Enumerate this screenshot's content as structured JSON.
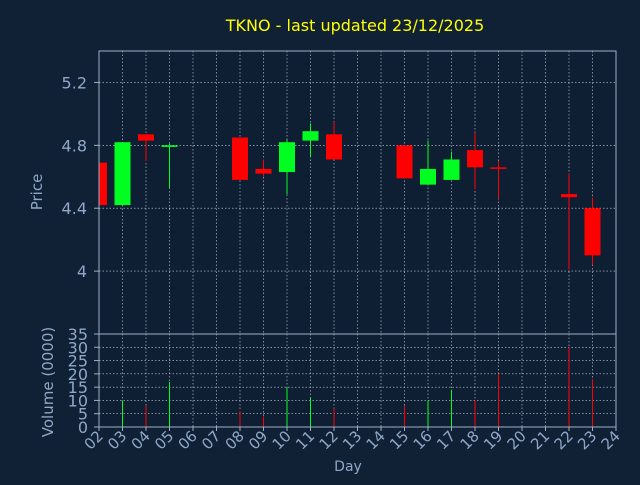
{
  "colors": {
    "background": "#102035",
    "plot_background": "#0f1f33",
    "frame": "#9ab0c8",
    "grid": "#c8d2dc",
    "title": "#ffff00",
    "axis_text": "#8fa8c8",
    "up": "#00ff20",
    "down": "#ff0000"
  },
  "chart_data": {
    "type": "candlestick",
    "title": "TKNO - last updated 23/12/2025",
    "xlabel": "Day",
    "price_panel": {
      "ylabel": "Price",
      "ylim": [
        3.6,
        5.4
      ],
      "yticks": [
        "4",
        "4.4",
        "4.8",
        "5.2"
      ],
      "ytick_values": [
        4.0,
        4.4,
        4.8,
        5.2
      ],
      "grid": true
    },
    "volume_panel": {
      "ylabel": "Volume (0000)",
      "ylim": [
        0,
        35
      ],
      "yticks": [
        "0",
        "5",
        "10",
        "15",
        "20",
        "25",
        "30",
        "35"
      ],
      "ytick_values": [
        0,
        5,
        10,
        15,
        20,
        25,
        30,
        35
      ],
      "grid": true
    },
    "xlim": [
      2,
      24
    ],
    "xticks": [
      "02",
      "03",
      "04",
      "05",
      "06",
      "07",
      "08",
      "09",
      "10",
      "11",
      "12",
      "13",
      "14",
      "15",
      "16",
      "17",
      "18",
      "19",
      "20",
      "21",
      "22",
      "23",
      "24"
    ],
    "candles": [
      {
        "day": 2,
        "open": 4.69,
        "high": 4.69,
        "low": 4.42,
        "close": 4.42,
        "volume": 0
      },
      {
        "day": 3,
        "open": 4.42,
        "high": 4.82,
        "low": 4.42,
        "close": 4.82,
        "volume": 10
      },
      {
        "day": 4,
        "open": 4.87,
        "high": 4.87,
        "low": 4.7,
        "close": 4.83,
        "volume": 8
      },
      {
        "day": 5,
        "open": 4.79,
        "high": 4.81,
        "low": 4.53,
        "close": 4.8,
        "volume": 17
      },
      {
        "day": 8,
        "open": 4.85,
        "high": 4.85,
        "low": 4.58,
        "close": 4.58,
        "volume": 6
      },
      {
        "day": 9,
        "open": 4.65,
        "high": 4.71,
        "low": 4.6,
        "close": 4.62,
        "volume": 4
      },
      {
        "day": 10,
        "open": 4.63,
        "high": 4.84,
        "low": 4.49,
        "close": 4.82,
        "volume": 15
      },
      {
        "day": 11,
        "open": 4.83,
        "high": 4.94,
        "low": 4.73,
        "close": 4.89,
        "volume": 11
      },
      {
        "day": 12,
        "open": 4.87,
        "high": 4.95,
        "low": 4.71,
        "close": 4.71,
        "volume": 7
      },
      {
        "day": 15,
        "open": 4.8,
        "high": 4.8,
        "low": 4.59,
        "close": 4.59,
        "volume": 8
      },
      {
        "day": 16,
        "open": 4.55,
        "high": 4.83,
        "low": 4.55,
        "close": 4.65,
        "volume": 10
      },
      {
        "day": 17,
        "open": 4.58,
        "high": 4.76,
        "low": 4.58,
        "close": 4.71,
        "volume": 14
      },
      {
        "day": 18,
        "open": 4.77,
        "high": 4.88,
        "low": 4.52,
        "close": 4.66,
        "volume": 10
      },
      {
        "day": 19,
        "open": 4.66,
        "high": 4.7,
        "low": 4.46,
        "close": 4.65,
        "volume": 20
      },
      {
        "day": 22,
        "open": 4.49,
        "high": 4.62,
        "low": 4.01,
        "close": 4.47,
        "volume": 30
      },
      {
        "day": 23,
        "open": 4.4,
        "high": 4.47,
        "low": 4.04,
        "close": 4.1,
        "volume": 18
      }
    ]
  }
}
